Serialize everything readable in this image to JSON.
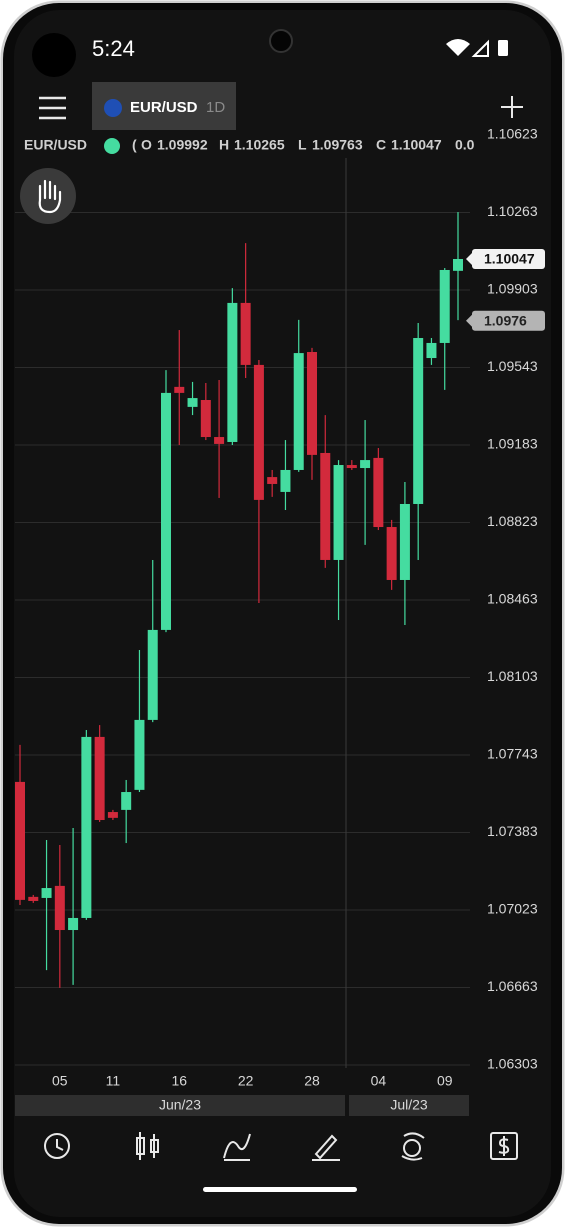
{
  "status_bar": {
    "time": "5:24"
  },
  "toolbar": {
    "interval": "1D"
  },
  "legend": {
    "open_paren": "(",
    "open": "O",
    "high": "H",
    "low": "L",
    "close": "C",
    "change": "0.0"
  },
  "chart_data": {
    "type": "candlestick",
    "title": "EUR/USD",
    "categories": [
      null,
      null,
      null,
      "05",
      null,
      null,
      null,
      "11",
      null,
      null,
      null,
      null,
      "16",
      null,
      null,
      null,
      null,
      "22",
      null,
      null,
      null,
      null,
      "28",
      null,
      null,
      null,
      null,
      "04",
      null,
      null,
      null,
      null,
      "09",
      null
    ],
    "x_groups": [
      "Jun/23",
      "Jul/23"
    ],
    "open": [
      1.07618,
      1.07084,
      1.07079,
      1.07135,
      1.0693,
      1.06986,
      1.07827,
      1.07478,
      1.07488,
      1.07581,
      1.07906,
      1.08324,
      1.09453,
      1.0936,
      1.09392,
      1.0922,
      1.09197,
      1.09843,
      1.09555,
      1.09034,
      1.08965,
      1.09067,
      1.09615,
      1.09146,
      1.08649,
      1.0909,
      1.09076,
      1.09123,
      1.08802,
      1.08556,
      1.08909,
      1.09587,
      1.09657,
      1.09992
    ],
    "high": [
      1.0779,
      1.07093,
      1.07348,
      1.07325,
      1.07404,
      1.07859,
      1.07882,
      1.07488,
      1.07627,
      1.08231,
      1.08649,
      1.09531,
      1.09717,
      1.09476,
      1.09471,
      1.09485,
      1.09912,
      1.10121,
      1.09578,
      1.09067,
      1.09206,
      1.09764,
      1.09634,
      1.09322,
      1.09113,
      1.09113,
      1.09299,
      1.09169,
      1.08835,
      1.09011,
      1.0975,
      1.0968,
      1.10005,
      1.10265
    ],
    "low": [
      1.07046,
      1.07056,
      1.06744,
      1.06661,
      1.06675,
      1.06977,
      1.07432,
      1.07441,
      1.07334,
      1.07571,
      1.07896,
      1.08314,
      1.09183,
      1.09322,
      1.09206,
      1.08937,
      1.09183,
      1.09494,
      1.08449,
      1.08942,
      1.08881,
      1.09058,
      1.09021,
      1.08612,
      1.0837,
      1.09067,
      1.08719,
      1.08788,
      1.0851,
      1.08347,
      1.08649,
      1.09555,
      1.09439,
      1.09763
    ],
    "close": [
      1.0707,
      1.07065,
      1.07125,
      1.0693,
      1.06986,
      1.07827,
      1.07441,
      1.07451,
      1.07571,
      1.07906,
      1.08324,
      1.09425,
      1.09425,
      1.09401,
      1.0922,
      1.09188,
      1.09843,
      1.09555,
      1.08928,
      1.09002,
      1.09067,
      1.0961,
      1.09137,
      1.08649,
      1.0909,
      1.09076,
      1.09113,
      1.08802,
      1.08556,
      1.08909,
      1.0968,
      1.09657,
      1.09996,
      1.10047
    ],
    "up_color": "#45dca0",
    "down_color": "#d22a3c",
    "ylim": [
      1.06303,
      1.10623
    ],
    "yticks": [
      1.10623,
      1.10263,
      1.09903,
      1.09543,
      1.09183,
      1.08823,
      1.08463,
      1.08103,
      1.07743,
      1.07383,
      1.07023,
      1.06663,
      1.06303
    ],
    "grid": true,
    "price_tags": [
      1.0976
    ]
  }
}
